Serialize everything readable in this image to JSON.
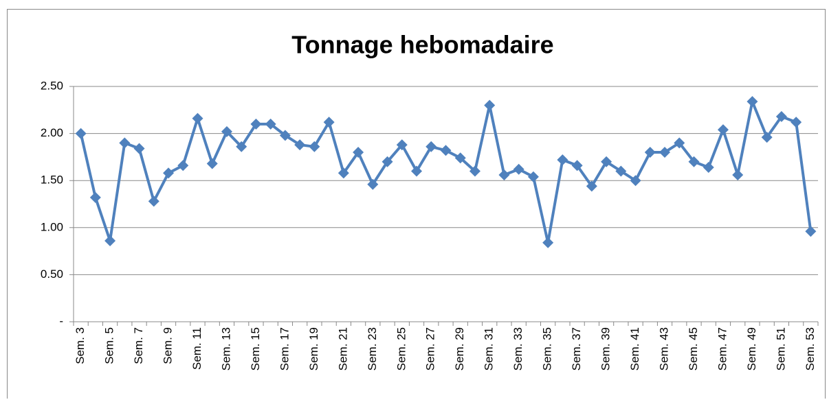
{
  "chart_data": {
    "type": "line",
    "title": "Tonnage hebomadaire",
    "categories": [
      "Sem. 3",
      null,
      "Sem. 5",
      null,
      "Sem. 7",
      null,
      "Sem. 9",
      null,
      "Sem. 11",
      null,
      "Sem. 13",
      null,
      "Sem. 15",
      null,
      "Sem. 17",
      null,
      "Sem. 19",
      null,
      "Sem. 21",
      null,
      "Sem. 23",
      null,
      "Sem. 25",
      null,
      "Sem. 27",
      null,
      "Sem. 29",
      null,
      "Sem. 31",
      null,
      "Sem. 33",
      null,
      "Sem. 35",
      null,
      "Sem. 37",
      null,
      "Sem. 39",
      null,
      "Sem. 41",
      null,
      "Sem. 43",
      null,
      "Sem. 45",
      null,
      "Sem. 47",
      null,
      "Sem. 49",
      null,
      "Sem. 51",
      null,
      "Sem. 53"
    ],
    "values": [
      2.0,
      1.32,
      0.86,
      1.9,
      1.84,
      1.28,
      1.58,
      1.66,
      2.16,
      1.68,
      2.02,
      1.86,
      2.1,
      2.1,
      1.98,
      1.88,
      1.86,
      2.12,
      1.58,
      1.8,
      1.46,
      1.7,
      1.88,
      1.6,
      1.86,
      1.82,
      1.74,
      1.6,
      2.3,
      1.56,
      1.62,
      1.54,
      0.84,
      1.72,
      1.66,
      1.44,
      1.7,
      1.6,
      1.5,
      1.8,
      1.8,
      1.9,
      1.7,
      1.64,
      2.04,
      1.56,
      2.34,
      1.96,
      2.18,
      2.12,
      0.96
    ],
    "color": "#4f81bd",
    "ylim": [
      0,
      2.5
    ],
    "yticks": [
      {
        "value": 0,
        "label": "-"
      },
      {
        "value": 0.5,
        "label": "0.50"
      },
      {
        "value": 1,
        "label": "1.00"
      },
      {
        "value": 1.5,
        "label": "1.50"
      },
      {
        "value": 2,
        "label": "2.00"
      },
      {
        "value": 2.5,
        "label": "2.50"
      }
    ],
    "grid": true
  }
}
